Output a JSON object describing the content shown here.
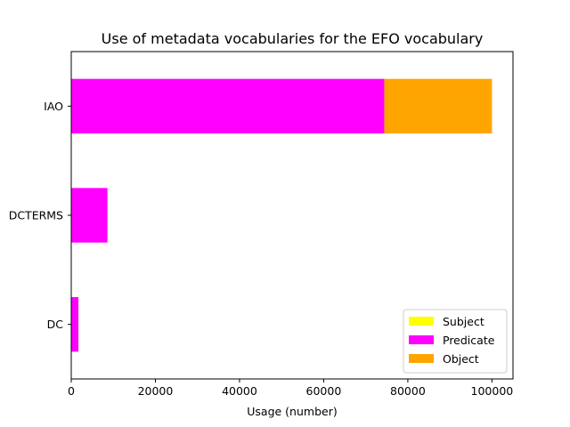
{
  "chart_data": {
    "type": "bar",
    "orientation": "horizontal",
    "stacked": true,
    "title": "Use of metadata vocabularies for the EFO vocabulary",
    "xlabel": "Usage (number)",
    "ylabel": "",
    "xlim": [
      0,
      105000
    ],
    "x_ticks": [
      0,
      20000,
      40000,
      60000,
      80000,
      100000
    ],
    "x_tick_labels": [
      "0",
      "20000",
      "40000",
      "60000",
      "80000",
      "100000"
    ],
    "categories": [
      "DC",
      "DCTERMS",
      "IAO"
    ],
    "series": [
      {
        "name": "Subject",
        "color": "#ffff00",
        "values": [
          0,
          0,
          0
        ]
      },
      {
        "name": "Predicate",
        "color": "#ff00ff",
        "values": [
          1700,
          8600,
          74400
        ]
      },
      {
        "name": "Object",
        "color": "#ffa500",
        "values": [
          0,
          0,
          25600
        ]
      }
    ],
    "grid": false,
    "legend_position": "bottom-right"
  }
}
